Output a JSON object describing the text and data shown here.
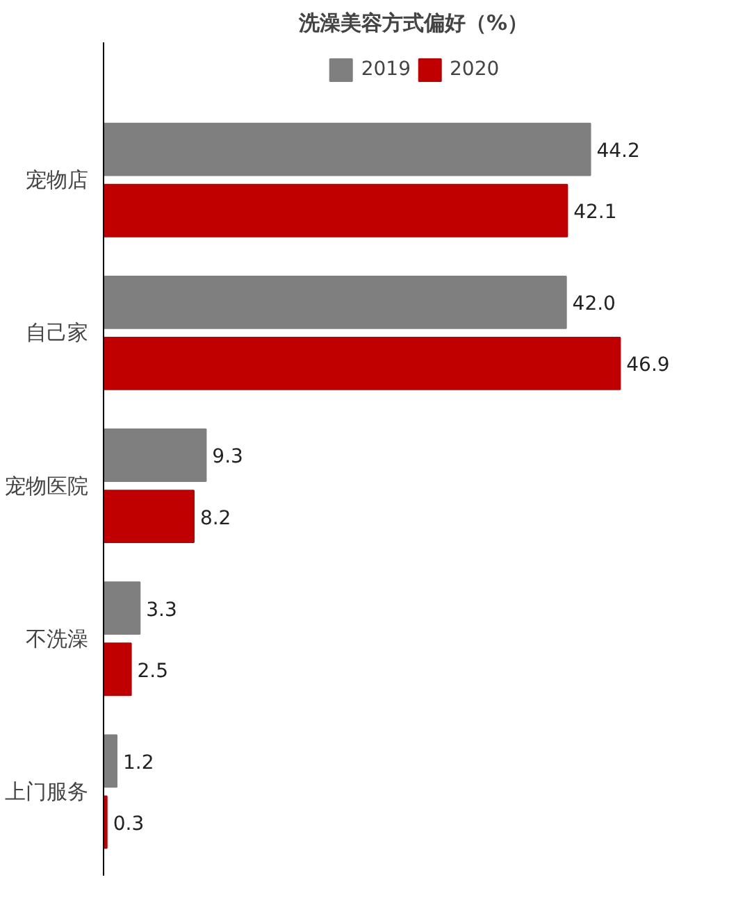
{
  "chart_data": {
    "type": "bar",
    "orientation": "horizontal",
    "title": "洗澡美容方式偏好（%）",
    "categories": [
      "宠物店",
      "自己家",
      "宠物医院",
      "不洗澡",
      "上门服务"
    ],
    "series": [
      {
        "name": "2019",
        "color": "#7f7f7f",
        "values": [
          44.2,
          42.0,
          9.3,
          3.3,
          1.2
        ],
        "value_labels": [
          "44.2",
          "42.0",
          "9.3",
          "3.3",
          "1.2"
        ]
      },
      {
        "name": "2020",
        "color": "#c00000",
        "values": [
          42.1,
          46.9,
          8.2,
          2.5,
          0.3
        ],
        "value_labels": [
          "42.1",
          "46.9",
          "8.2",
          "2.5",
          "0.3"
        ]
      }
    ],
    "legend": "top",
    "grid": false,
    "tick_labels": "y"
  }
}
